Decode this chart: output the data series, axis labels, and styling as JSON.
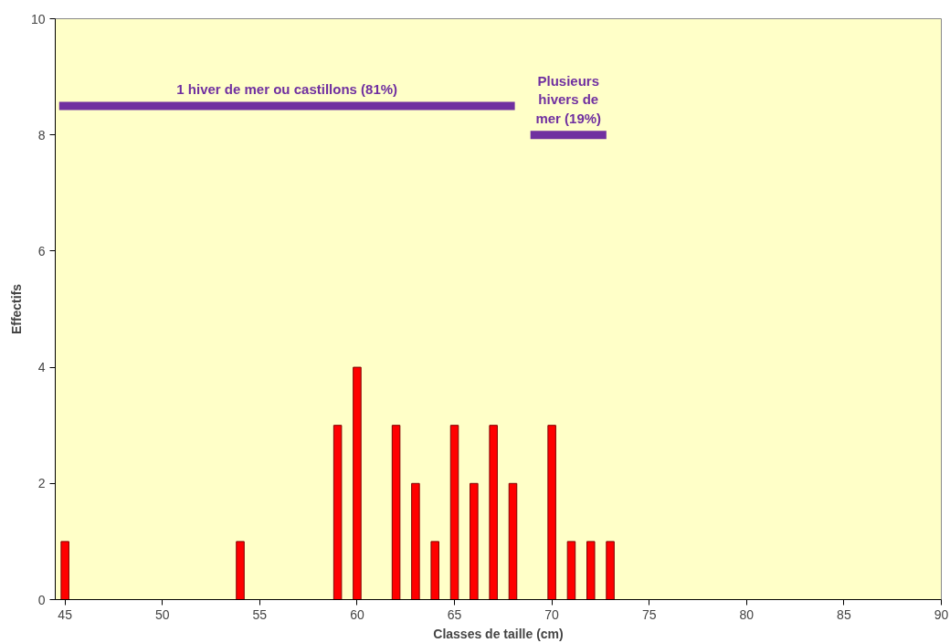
{
  "chart_data": {
    "type": "bar",
    "xlabel": "Classes de taille (cm)",
    "ylabel": "Effectifs",
    "x": [
      45,
      54,
      59,
      60,
      62,
      63,
      64,
      65,
      66,
      67,
      68,
      70,
      71,
      72,
      73
    ],
    "series": [
      {
        "color": "#ff0000",
        "values": [
          1,
          1,
          3,
          4,
          3,
          2,
          1,
          3,
          2,
          3,
          2,
          3,
          1,
          1,
          1
        ]
      },
      {
        "type": "line",
        "name": "1 hiver de mer ou castillons (81%)",
        "color": "#7030a0",
        "x": [
          44.7,
          68.1
        ],
        "values": [
          8.5,
          8.5
        ]
      },
      {
        "type": "line",
        "name": "Plusieurs hivers de mer (19%)",
        "color": "#7030a0",
        "x": [
          68.9,
          72.8
        ],
        "values": [
          8,
          8
        ]
      }
    ],
    "xlim": [
      44.5,
      90
    ],
    "xticks": [
      45,
      50,
      55,
      60,
      65,
      70,
      75,
      80,
      85,
      90
    ],
    "ylim": [
      0,
      10
    ],
    "yticks": [
      0,
      2,
      4,
      6,
      8,
      10
    ],
    "grid": false
  }
}
